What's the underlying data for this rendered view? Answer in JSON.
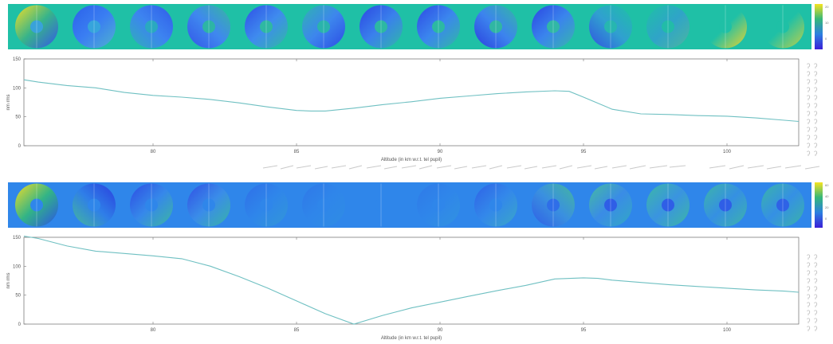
{
  "chart_data": [
    {
      "type": "heatmap",
      "panel": "top-strip",
      "colorbar_ticks": [
        "20",
        "10",
        "0"
      ],
      "tile_count": 14
    },
    {
      "type": "line",
      "panel": "top-plot",
      "xlabel": "Altitude (in km w.r.t. tel pupil)",
      "ylabel": "nm rms",
      "xlim": [
        75.5,
        102.5
      ],
      "ylim": [
        0,
        150
      ],
      "xticks": [
        80,
        85,
        90,
        95,
        100
      ],
      "yticks": [
        0,
        50,
        100,
        150
      ],
      "x": [
        75.5,
        76,
        77,
        78,
        79,
        80,
        81,
        82,
        83,
        84,
        85,
        85.5,
        86,
        87,
        88,
        89,
        90,
        91,
        92,
        93,
        94,
        94.5,
        95,
        96,
        97,
        98,
        99,
        100,
        101,
        102,
        102.5
      ],
      "y": [
        114,
        110,
        104,
        100,
        92,
        87,
        84,
        80,
        74,
        67,
        61,
        60,
        60,
        65,
        71,
        76,
        82,
        86,
        90,
        93,
        95,
        94,
        84,
        63,
        55,
        54,
        52,
        51,
        48,
        44,
        42
      ]
    },
    {
      "type": "heatmap",
      "panel": "bottom-strip",
      "colorbar_ticks": [
        "60",
        "40",
        "20",
        "0"
      ],
      "tile_count": 14
    },
    {
      "type": "line",
      "panel": "bottom-plot",
      "xlabel": "Altitude (in km w.r.t. tel pupil)",
      "ylabel": "nm rms",
      "xlim": [
        75.5,
        102.5
      ],
      "ylim": [
        0,
        150
      ],
      "xticks": [
        80,
        85,
        90,
        95,
        100
      ],
      "yticks": [
        0,
        50,
        100,
        150
      ],
      "x": [
        75.5,
        76,
        77,
        78,
        79,
        80,
        81,
        82,
        83,
        84,
        85,
        86,
        87,
        88,
        89,
        90,
        91,
        92,
        93,
        94,
        95,
        95.5,
        96,
        97,
        98,
        99,
        100,
        101,
        102,
        102.5
      ],
      "y": [
        152,
        148,
        135,
        126,
        122,
        118,
        113,
        100,
        82,
        62,
        40,
        18,
        0,
        15,
        28,
        38,
        48,
        58,
        67,
        78,
        80,
        79,
        76,
        72,
        68,
        65,
        62,
        59,
        57,
        55
      ]
    }
  ],
  "colors": {
    "line": "#6fc0c2",
    "top_background": "#1fc0a6",
    "bottom_background": "#2f86ea"
  }
}
